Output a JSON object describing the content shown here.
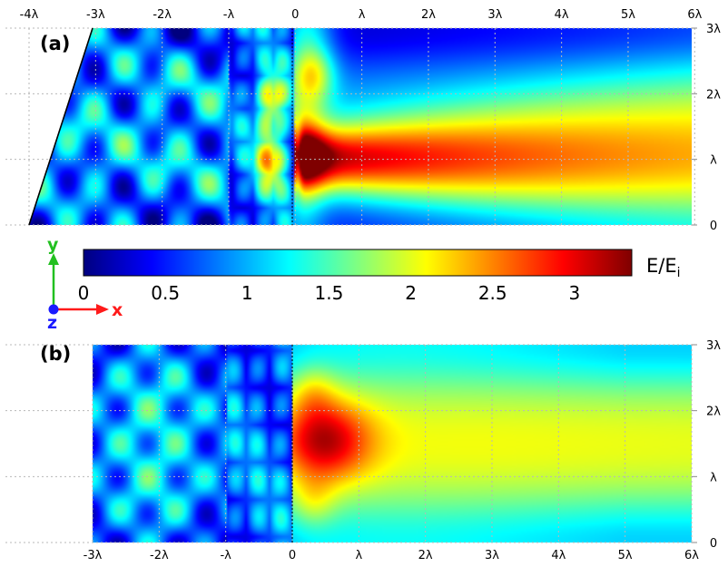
{
  "chart_data": [
    {
      "type": "heatmap",
      "panel_label": "(a)",
      "quantity": "E/Ei",
      "x_ticks": [
        {
          "value": -4,
          "label": "-4λ"
        },
        {
          "value": -3,
          "label": "-3λ"
        },
        {
          "value": -2,
          "label": "-2λ"
        },
        {
          "value": -1,
          "label": "-λ"
        },
        {
          "value": 0,
          "label": "0"
        },
        {
          "value": 1,
          "label": "λ"
        },
        {
          "value": 2,
          "label": "2λ"
        },
        {
          "value": 3,
          "label": "3λ"
        },
        {
          "value": 4,
          "label": "4λ"
        },
        {
          "value": 5,
          "label": "5λ"
        },
        {
          "value": 6,
          "label": "6λ"
        }
      ],
      "y_ticks": [
        {
          "value": 0,
          "label": "0"
        },
        {
          "value": 1,
          "label": "λ"
        },
        {
          "value": 2,
          "label": "2λ"
        },
        {
          "value": 3,
          "label": "3λ"
        }
      ],
      "xlim": [
        -4,
        6
      ],
      "ylim": [
        0,
        3
      ],
      "field_region": {
        "x": [
          -3,
          6
        ],
        "y": [
          0,
          3
        ],
        "slanted_left_edge": {
          "bottom_x": -4,
          "top_x": -3
        }
      },
      "interface_x": 0,
      "focus": {
        "x": 1.1,
        "y": 1.0,
        "peak_value": 3.2
      },
      "grid": true
    },
    {
      "type": "heatmap",
      "panel_label": "(b)",
      "quantity": "E/Ei",
      "x_ticks": [
        {
          "value": -3,
          "label": "-3λ"
        },
        {
          "value": -2,
          "label": "-2λ"
        },
        {
          "value": -1,
          "label": "-λ"
        },
        {
          "value": 0,
          "label": "0"
        },
        {
          "value": 1,
          "label": "λ"
        },
        {
          "value": 2,
          "label": "2λ"
        },
        {
          "value": 3,
          "label": "3λ"
        },
        {
          "value": 4,
          "label": "4λ"
        },
        {
          "value": 5,
          "label": "5λ"
        },
        {
          "value": 6,
          "label": "6λ"
        }
      ],
      "y_ticks": [
        {
          "value": 0,
          "label": "0"
        },
        {
          "value": 1,
          "label": "λ"
        },
        {
          "value": 2,
          "label": "2λ"
        },
        {
          "value": 3,
          "label": "3λ"
        }
      ],
      "xlim": [
        -3,
        6
      ],
      "ylim": [
        0,
        3
      ],
      "field_region": {
        "x": [
          -3,
          6
        ],
        "y": [
          0,
          3
        ]
      },
      "interface_x": 0,
      "focus": {
        "x": 0.5,
        "y": 1.5,
        "peak_value": 2.9
      },
      "grid": true
    }
  ],
  "colorbar": {
    "label_main": "E/E",
    "label_sub": "i",
    "range": [
      0,
      3.35
    ],
    "ticks": [
      {
        "value": 0,
        "label": "0"
      },
      {
        "value": 0.5,
        "label": "0.5"
      },
      {
        "value": 1,
        "label": "1"
      },
      {
        "value": 1.5,
        "label": "1.5"
      },
      {
        "value": 2,
        "label": "2"
      },
      {
        "value": 2.5,
        "label": "2.5"
      },
      {
        "value": 3,
        "label": "3"
      }
    ],
    "colormap": [
      "#00007f",
      "#0000ff",
      "#0080ff",
      "#00ffff",
      "#80ff80",
      "#ffff00",
      "#ff8000",
      "#ff0000",
      "#7f0000"
    ]
  },
  "axes_indicator": {
    "y_label": "y",
    "x_label": "x",
    "z_label": "z",
    "y_color": "#22c020",
    "x_color": "#ff1a1a",
    "z_color": "#1a1aff"
  }
}
